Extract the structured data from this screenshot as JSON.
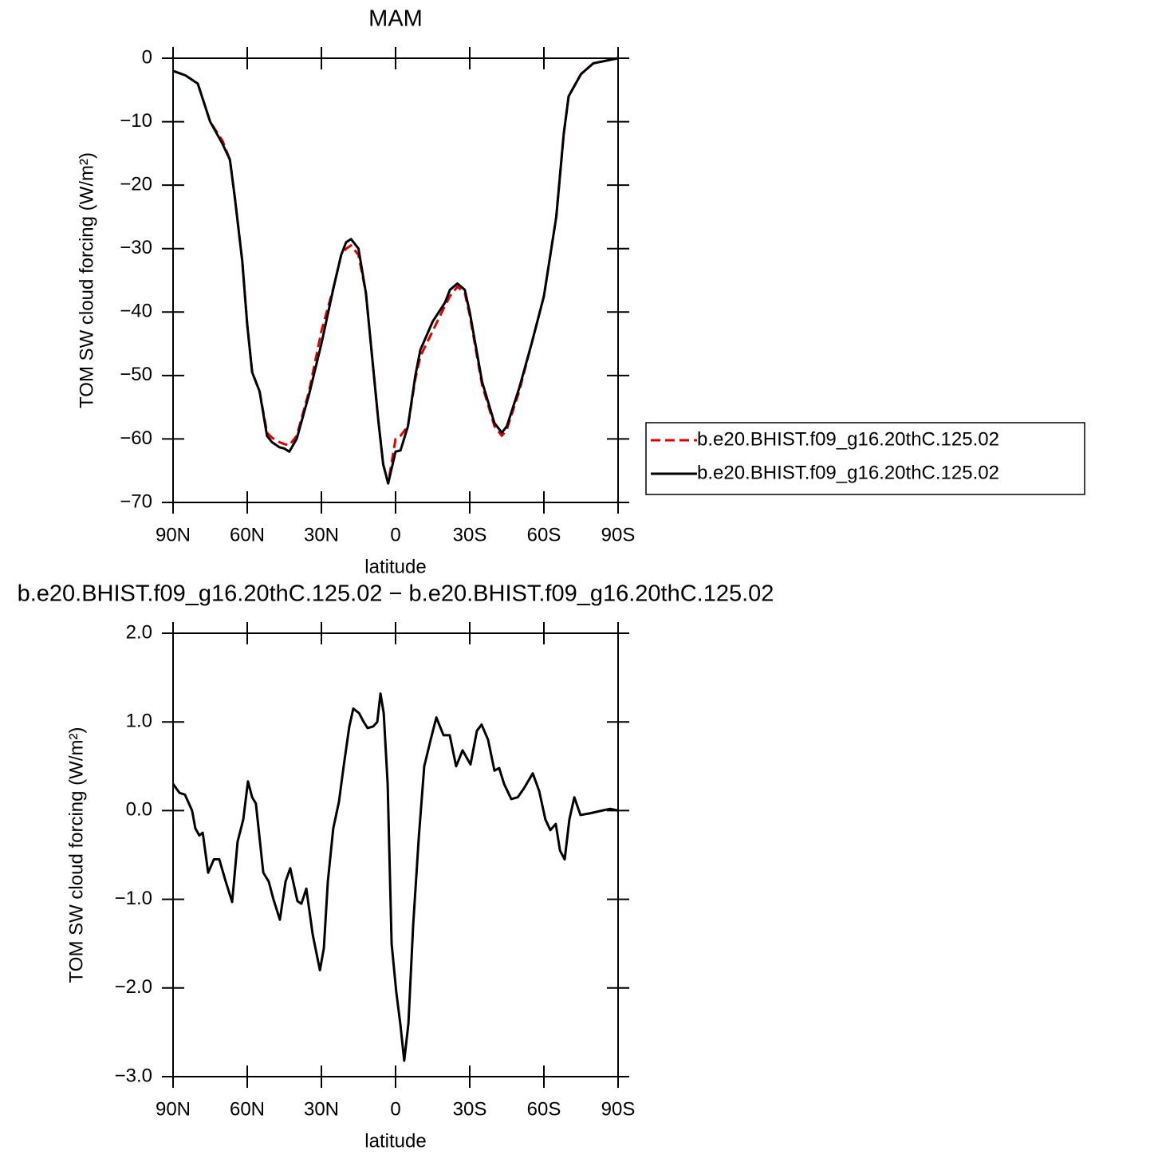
{
  "chart_data": [
    {
      "type": "line",
      "title": "MAM",
      "x_label": "latitude",
      "y_label": "TOM SW cloud forcing (W/m²)",
      "x": [
        90,
        85,
        80,
        75,
        70,
        67,
        65,
        62,
        60,
        58,
        55,
        52,
        50,
        47,
        45,
        43,
        40,
        35,
        30,
        25,
        22,
        20,
        18,
        15,
        12,
        10,
        7,
        5,
        3,
        0,
        -2,
        -5,
        -8,
        -10,
        -15,
        -20,
        -22,
        -25,
        -28,
        -30,
        -35,
        -40,
        -43,
        -45,
        -50,
        -55,
        -60,
        -65,
        -68,
        -70,
        -75,
        -80,
        -85,
        -90
      ],
      "series": [
        {
          "name": "b.e20.BHIST.f09_g16.20thC.125.02",
          "color": "#e00000",
          "dash": true,
          "values": [
            -2,
            -2.7,
            -4,
            -10,
            -13,
            -16,
            -22,
            -32,
            -42,
            -49.5,
            -52.5,
            -59,
            -59.8,
            -60.5,
            -60.8,
            -61,
            -59.5,
            -52.5,
            -43,
            -36,
            -31,
            -30,
            -29.5,
            -31,
            -37,
            -45,
            -57,
            -64,
            -67,
            -60,
            -59.5,
            -58,
            -50.5,
            -47,
            -43,
            -39,
            -37.5,
            -36,
            -37,
            -40.5,
            -51.5,
            -58,
            -59.5,
            -58.5,
            -52.5,
            -45,
            -37.5,
            -25,
            -12,
            -6,
            -2.5,
            -0.8,
            -0.4,
            0
          ]
        },
        {
          "name": "b.e20.BHIST.f09_g16.20thC.125.02",
          "color": "#000000",
          "dash": false,
          "values": [
            -2,
            -2.7,
            -4,
            -10,
            -13.5,
            -16,
            -22,
            -32,
            -42,
            -49.5,
            -52.5,
            -59.5,
            -60.5,
            -61.3,
            -61.5,
            -62,
            -60,
            -53,
            -45,
            -36,
            -31,
            -29,
            -28.5,
            -30,
            -37,
            -45,
            -57,
            -64,
            -67,
            -62,
            -61.8,
            -58,
            -50,
            -46,
            -41.5,
            -38.5,
            -36.5,
            -35.5,
            -36.5,
            -40,
            -51,
            -57.5,
            -59,
            -58,
            -52,
            -45,
            -37.5,
            -25,
            -12,
            -6,
            -2.5,
            -0.8,
            -0.4,
            0
          ]
        }
      ],
      "xlim": [
        90,
        -90
      ],
      "xticks": [
        {
          "value": 90,
          "label": "90N"
        },
        {
          "value": 60,
          "label": "60N"
        },
        {
          "value": 30,
          "label": "30N"
        },
        0,
        {
          "value": -30,
          "label": "30S"
        },
        {
          "value": -60,
          "label": "60S"
        },
        {
          "value": -90,
          "label": "90S"
        }
      ],
      "ylim": [
        -70,
        0
      ],
      "yticks": [
        0,
        {
          "value": -10,
          "label": "−10"
        },
        {
          "value": -20,
          "label": "−20"
        },
        {
          "value": -30,
          "label": "−30"
        },
        {
          "value": -40,
          "label": "−40"
        },
        {
          "value": -50,
          "label": "−50"
        },
        {
          "value": -60,
          "label": "−60"
        },
        {
          "value": -70,
          "label": "−70"
        }
      ],
      "legend": "right"
    },
    {
      "type": "line",
      "title": "b.e20.BHIST.f09_g16.20thC.125.02 − b.e20.BHIST.f09_g16.20thC.125.02",
      "x_label": "latitude",
      "y_label": "TOM SW cloud forcing (W/m²)",
      "x": [
        90,
        87.4,
        85.2,
        82.3,
        81,
        79.4,
        78,
        75.8,
        73.5,
        71.3,
        68.7,
        66.1,
        63.9,
        61.6,
        59.7,
        58,
        56.5,
        53.5,
        51.3,
        49.4,
        46.8,
        44.5,
        42.6,
        39.7,
        38.1,
        36.1,
        33.5,
        30.6,
        29,
        27.4,
        25.2,
        22.9,
        21,
        18.7,
        17.1,
        14.8,
        12.9,
        11.3,
        9,
        7.4,
        6.1,
        4.8,
        3.2,
        1.6,
        -0.3,
        -1.9,
        -3.5,
        -5.2,
        -7.1,
        -9.4,
        -11.6,
        -14.2,
        -16.5,
        -19.4,
        -21.9,
        -24.5,
        -27.1,
        -30.3,
        -32.9,
        -34.8,
        -37.4,
        -40,
        -41.9,
        -43.9,
        -46.8,
        -49.4,
        -51.9,
        -55.5,
        -58.1,
        -60.6,
        -62.6,
        -64.8,
        -66.5,
        -68.4,
        -70.3,
        -72.3,
        -74.8,
        -78.7,
        -83.5,
        -86.8,
        -90
      ],
      "series": [
        {
          "color": "#000000",
          "dash": false,
          "values": [
            0.3,
            0.2,
            0.18,
            0,
            -0.2,
            -0.28,
            -0.25,
            -0.7,
            -0.55,
            -0.55,
            -0.8,
            -1.03,
            -0.35,
            -0.1,
            0.33,
            0.15,
            0.08,
            -0.7,
            -0.8,
            -1,
            -1.23,
            -0.8,
            -0.65,
            -1.02,
            -1.05,
            -0.88,
            -1.4,
            -1.8,
            -1.55,
            -0.8,
            -0.2,
            0.1,
            0.5,
            0.95,
            1.15,
            1.1,
            1,
            0.93,
            0.95,
            1,
            1.32,
            1.1,
            0.3,
            -1.5,
            -2.05,
            -2.4,
            -2.82,
            -2.4,
            -1.3,
            -0.3,
            0.5,
            0.8,
            1.05,
            0.85,
            0.85,
            0.5,
            0.68,
            0.52,
            0.9,
            0.97,
            0.8,
            0.45,
            0.48,
            0.3,
            0.13,
            0.15,
            0.25,
            0.42,
            0.22,
            -0.1,
            -0.22,
            -0.15,
            -0.45,
            -0.55,
            -0.1,
            0.15,
            -0.05,
            -0.03,
            0,
            0.02,
            0
          ]
        }
      ],
      "xlim": [
        90,
        -90
      ],
      "xticks": [
        {
          "value": 90,
          "label": "90N"
        },
        {
          "value": 60,
          "label": "60N"
        },
        {
          "value": 30,
          "label": "30N"
        },
        0,
        {
          "value": -30,
          "label": "30S"
        },
        {
          "value": -60,
          "label": "60S"
        },
        {
          "value": -90,
          "label": "90S"
        }
      ],
      "ylim": [
        -3,
        2
      ],
      "yticks": [
        {
          "value": 2,
          "label": "2.0"
        },
        {
          "value": 1,
          "label": "1.0"
        },
        {
          "value": 0,
          "label": "0.0"
        },
        {
          "value": -1,
          "label": "−1.0"
        },
        {
          "value": -2,
          "label": "−2.0"
        },
        {
          "value": -3,
          "label": "−3.0"
        }
      ]
    }
  ]
}
